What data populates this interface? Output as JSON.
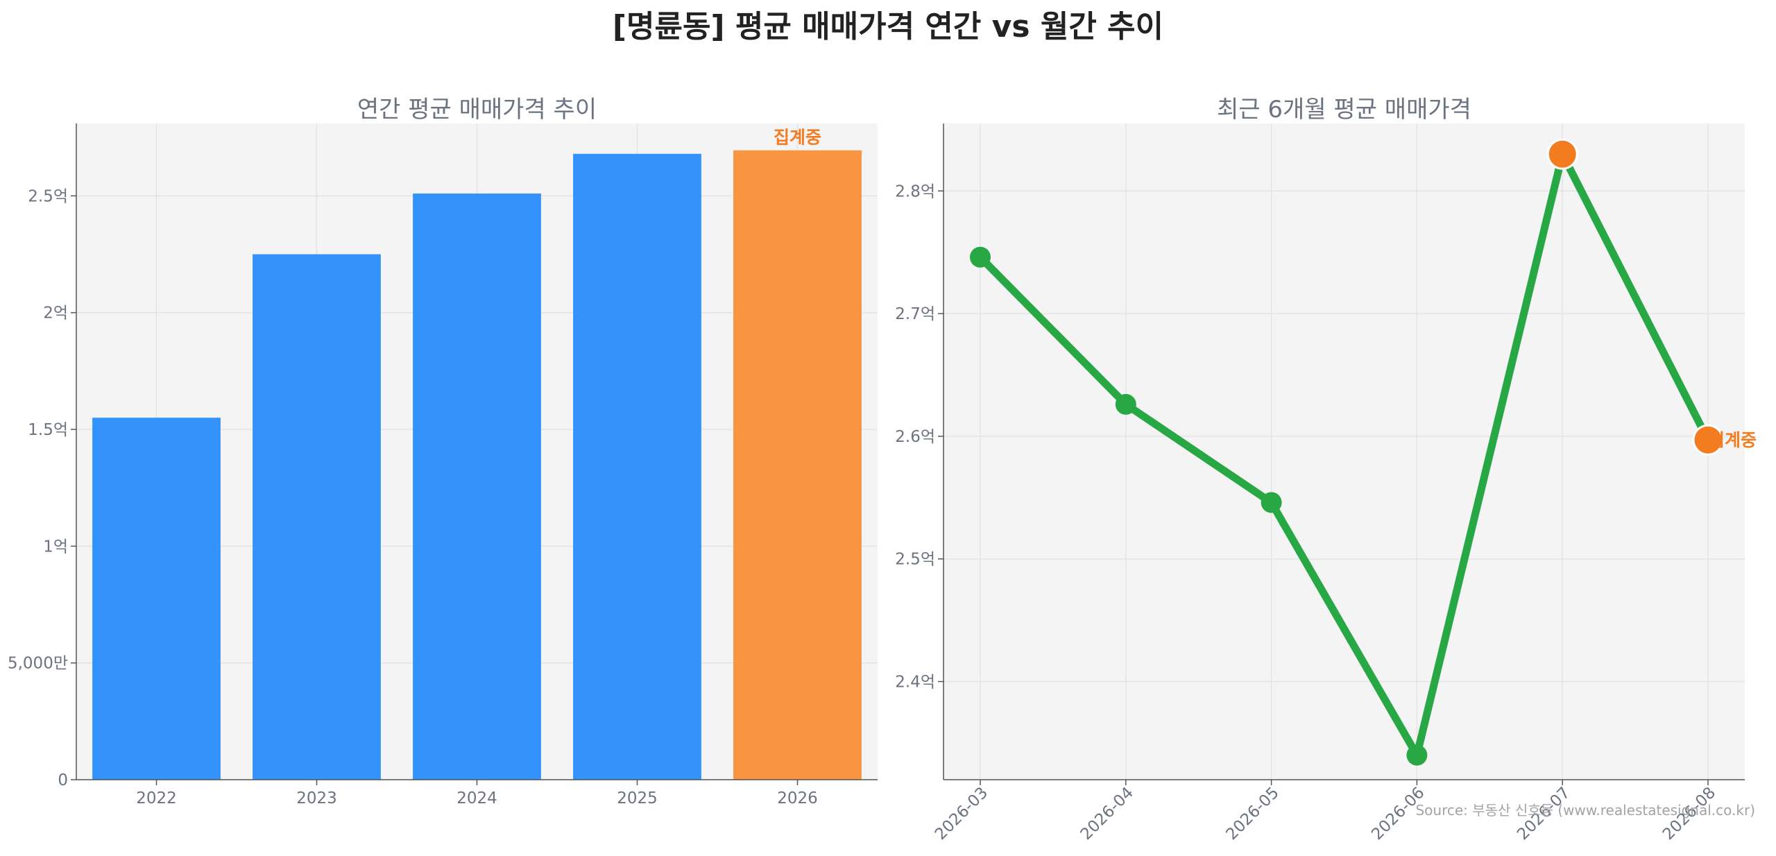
{
  "page": {
    "title": "[명륜동] 평균 매매가격 연간 vs 월간 추이"
  },
  "source_note": "Source: 부동산 신호등 (www.realestatesignal.co.kr)",
  "colors": {
    "bar": "#3392fb",
    "bar_pending": "#f99540",
    "line": "#28a745",
    "highlight": "#f47c20",
    "panel_bg": "#f4f4f4",
    "grid": "#e3e3e3"
  },
  "chart_data": [
    {
      "type": "bar",
      "title": "연간 평균 매매가격 추이",
      "categories": [
        "2022",
        "2023",
        "2024",
        "2025",
        "2026"
      ],
      "values": [
        155000000,
        225000000,
        251000000,
        268000000,
        269500000
      ],
      "ylim": [
        0,
        281000000
      ],
      "yticks": [
        {
          "value": 0,
          "label": "0"
        },
        {
          "value": 50000000,
          "label": "5,000만"
        },
        {
          "value": 100000000,
          "label": "1억"
        },
        {
          "value": 150000000,
          "label": "1.5억"
        },
        {
          "value": 200000000,
          "label": "2억"
        },
        {
          "value": 250000000,
          "label": "2.5억"
        }
      ],
      "pending_label": "집계중",
      "pending_index": 4,
      "grid": true
    },
    {
      "type": "line",
      "title": "최근 6개월 평균 매매가격",
      "x": [
        "2026-03",
        "2026-04",
        "2026-05",
        "2026-06",
        "2026-07",
        "2026-08"
      ],
      "values": [
        274600000,
        262600000,
        254600000,
        234000000,
        283000000,
        259700000
      ],
      "ylim": [
        232000000,
        285500000
      ],
      "yticks": [
        {
          "value": 240000000,
          "label": "2.4억"
        },
        {
          "value": 250000000,
          "label": "2.5억"
        },
        {
          "value": 260000000,
          "label": "2.6억"
        },
        {
          "value": 270000000,
          "label": "2.7억"
        },
        {
          "value": 280000000,
          "label": "2.8억"
        }
      ],
      "highlight_indices": [
        4,
        5
      ],
      "pending_label": "집계중",
      "pending_index": 5,
      "grid": true
    }
  ]
}
